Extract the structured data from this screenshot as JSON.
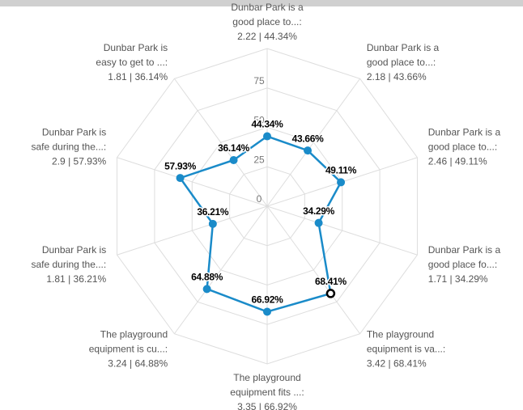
{
  "chart_data": {
    "type": "radar",
    "categories": [
      [
        "Dunbar Park is a",
        "good place to...:"
      ],
      [
        "Dunbar Park is a",
        "good place to...:"
      ],
      [
        "Dunbar Park is a",
        "good place to...:"
      ],
      [
        "Dunbar Park is a",
        "good place fo...:"
      ],
      [
        "The playground",
        "equipment is va...:"
      ],
      [
        "The playground",
        "equipment fits ...:"
      ],
      [
        "The playground",
        "equipment is cu...:"
      ],
      [
        "Dunbar Park is",
        "safe during the...:"
      ],
      [
        "Dunbar Park is",
        "safe during the...:"
      ],
      [
        "Dunbar Park is",
        "easy to get to ...:"
      ]
    ],
    "axis_values": [
      "2.22 | 44.34%",
      "2.18 | 43.66%",
      "2.46 | 49.11%",
      "1.71 | 34.29%",
      "3.42 | 68.41%",
      "3.35 | 66.92%",
      "3.24 | 64.88%",
      "1.81 | 36.21%",
      "2.9 | 57.93%",
      "1.81 | 36.14%"
    ],
    "values": [
      44.34,
      43.66,
      49.11,
      34.29,
      68.41,
      66.92,
      64.88,
      36.21,
      57.93,
      36.14
    ],
    "value_labels": [
      "44.34%",
      "43.66%",
      "49.11%",
      "34.29%",
      "68.41%",
      "66.92%",
      "64.88%",
      "36.21%",
      "57.93%",
      "36.14%"
    ],
    "color": "#1a8bc9",
    "ylim": [
      0,
      100
    ],
    "yticks": [
      0,
      25,
      50,
      75
    ],
    "grid": true,
    "highlighted_index": 4
  }
}
